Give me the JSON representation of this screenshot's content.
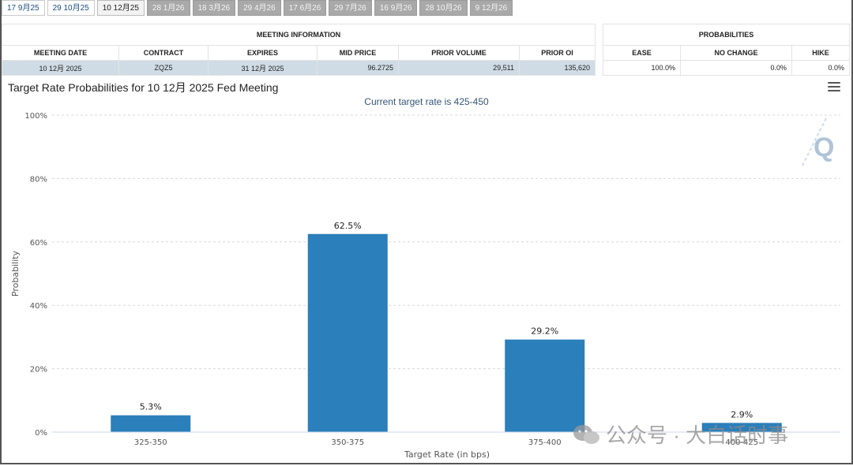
{
  "tabs": [
    {
      "label": "17 9月25",
      "state": "normal"
    },
    {
      "label": "29 10月25",
      "state": "normal"
    },
    {
      "label": "10 12月25",
      "state": "active"
    },
    {
      "label": "28 1月26",
      "state": "disabled"
    },
    {
      "label": "18 3月26",
      "state": "disabled"
    },
    {
      "label": "29 4月26",
      "state": "disabled"
    },
    {
      "label": "17 6月26",
      "state": "disabled"
    },
    {
      "label": "29 7月26",
      "state": "disabled"
    },
    {
      "label": "16 9月26",
      "state": "disabled"
    },
    {
      "label": "28 10月26",
      "state": "disabled"
    },
    {
      "label": "9 12月26",
      "state": "disabled"
    }
  ],
  "meeting_info": {
    "title": "MEETING INFORMATION",
    "headers": [
      "MEETING DATE",
      "CONTRACT",
      "EXPIRES",
      "MID PRICE",
      "PRIOR VOLUME",
      "PRIOR OI"
    ],
    "row": [
      "10 12月 2025",
      "ZQZ5",
      "31 12月 2025",
      "96.2725",
      "29,511",
      "135,620"
    ]
  },
  "probabilities": {
    "title": "PROBABILITIES",
    "headers": [
      "EASE",
      "NO CHANGE",
      "HIKE"
    ],
    "row": [
      "100.0%",
      "0.0%",
      "0.0%"
    ]
  },
  "chart_data": {
    "type": "bar",
    "title": "Target Rate Probabilities for 10 12月 2025 Fed Meeting",
    "subtitle": "Current target rate is 425-450",
    "xlabel": "Target Rate (in bps)",
    "ylabel": "Probability",
    "categories": [
      "325-350",
      "350-375",
      "375-400",
      "400-425"
    ],
    "values": [
      5.3,
      62.5,
      29.2,
      2.9
    ],
    "data_labels": [
      "5.3%",
      "62.5%",
      "29.2%",
      "2.9%"
    ],
    "yticks": [
      "0%",
      "20%",
      "40%",
      "60%",
      "80%",
      "100%"
    ],
    "ylim": [
      0,
      100
    ],
    "grid": true,
    "bar_color": "#2b7fba"
  },
  "watermark": {
    "text": "公众号 · 大白话时事"
  }
}
